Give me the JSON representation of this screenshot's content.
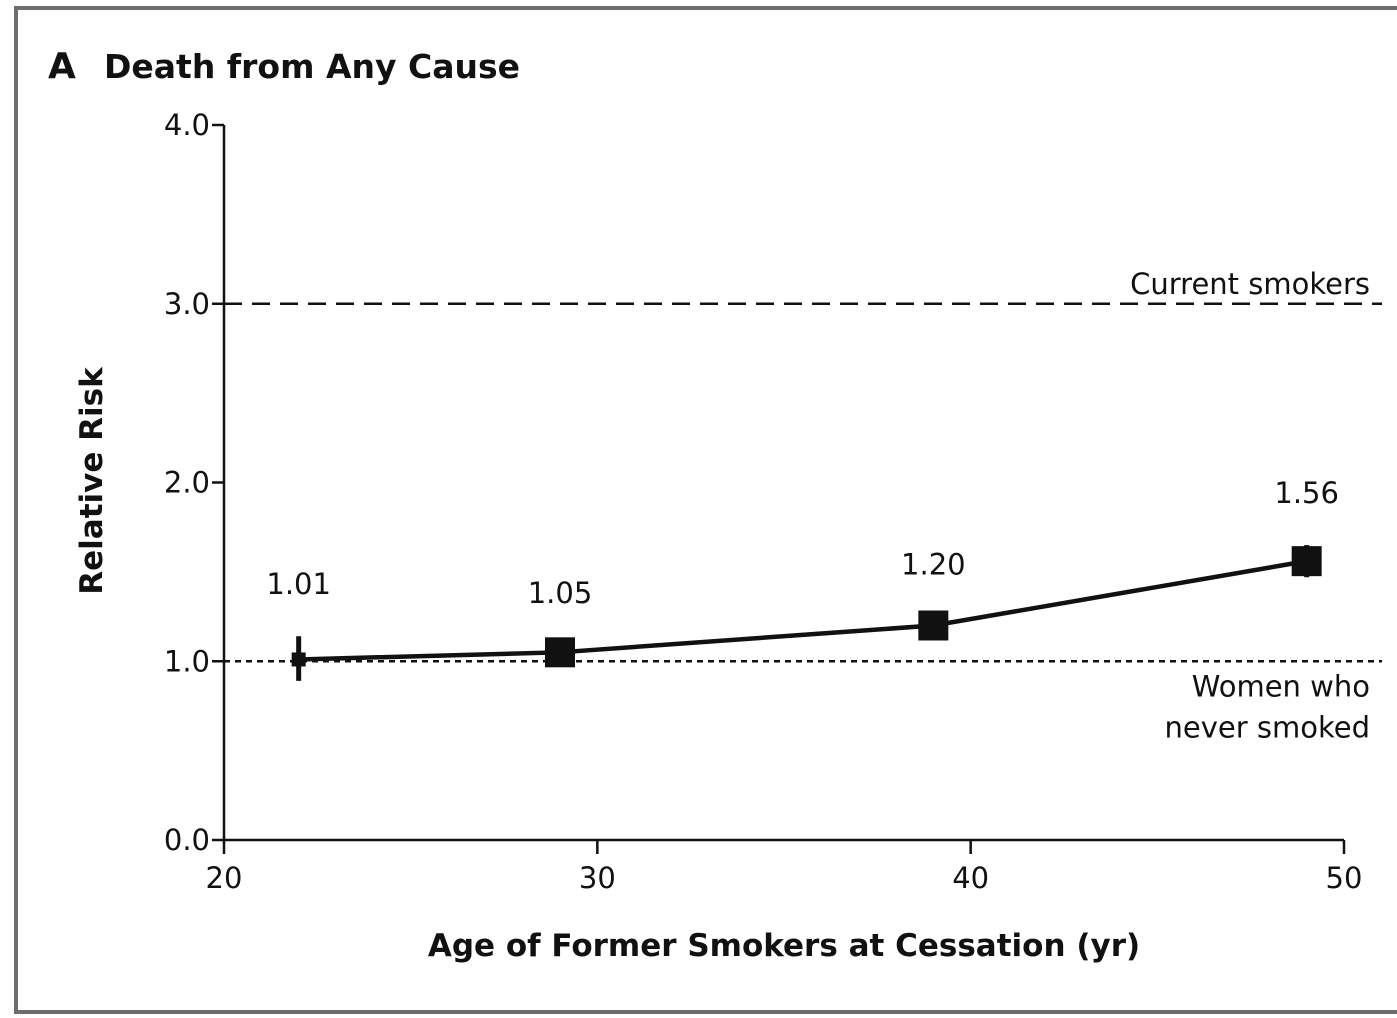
{
  "panel_letter": "A",
  "chart_data": {
    "type": "line",
    "title": "Death from Any Cause",
    "xlabel": "Age of Former Smokers at Cessation (yr)",
    "ylabel": "Relative Risk",
    "xlim": [
      20,
      50
    ],
    "ylim": [
      0.0,
      4.0
    ],
    "x_ticks": [
      20,
      30,
      40,
      50
    ],
    "x_tick_labels": [
      "20",
      "30",
      "40",
      "50"
    ],
    "y_ticks": [
      0.0,
      1.0,
      2.0,
      3.0,
      4.0
    ],
    "y_tick_labels": [
      "0.0",
      "1.0",
      "2.0",
      "3.0",
      "4.0"
    ],
    "grid": false,
    "series": [
      {
        "x": [
          22,
          29,
          39,
          49
        ],
        "values": [
          1.01,
          1.05,
          1.2,
          1.56
        ],
        "labels": [
          "1.01",
          "1.05",
          "1.20",
          "1.56"
        ],
        "ci_low": [
          0.89,
          1.01,
          1.15,
          1.47
        ],
        "ci_high": [
          1.14,
          1.09,
          1.25,
          1.65
        ]
      }
    ],
    "reference_lines": [
      {
        "value": 3.0,
        "style": "dashed",
        "label_lines": [
          "Current smokers"
        ]
      },
      {
        "value": 1.0,
        "style": "dotted",
        "label_lines": [
          "Women who",
          "never smoked"
        ]
      }
    ]
  },
  "colors": {
    "frame": "#6e6e6e",
    "ink": "#111111",
    "background": "#ffffff"
  }
}
